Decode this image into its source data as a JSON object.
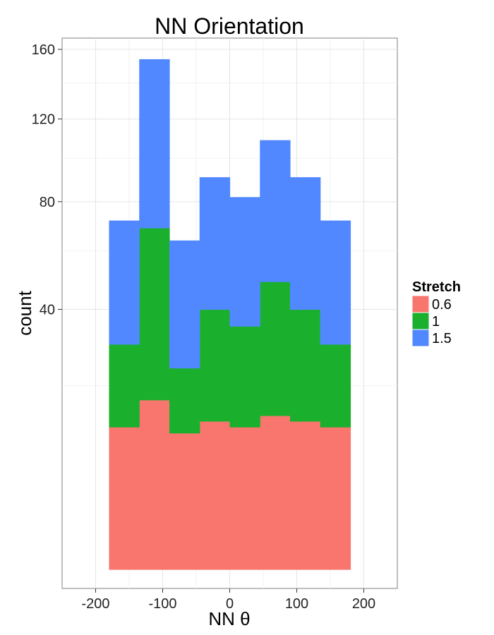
{
  "chart_data": {
    "type": "bar",
    "title": "NN Orientation",
    "xlabel": "NN θ",
    "ylabel": "count",
    "xlim": [
      -250,
      250
    ],
    "xticks": [
      -200,
      -100,
      0,
      100,
      200
    ],
    "xtick_labels": [
      "-200",
      "-100",
      "0",
      "100",
      "200"
    ],
    "y_scale": "sqrt",
    "ylim": [
      0,
      167
    ],
    "yticks": [
      40,
      80,
      120,
      160
    ],
    "ytick_labels": [
      "40",
      "80",
      "120",
      "160"
    ],
    "grid": true,
    "stacked": true,
    "bin_edges": [
      -180,
      -135,
      -90,
      -45,
      0,
      45,
      90,
      135,
      180
    ],
    "legend": {
      "title": "Stretch",
      "position": "right"
    },
    "series": [
      {
        "name": "0.6",
        "color": "#F8766D",
        "values": [
          12,
          17,
          11,
          13,
          12,
          14,
          13,
          12
        ]
      },
      {
        "name": "1",
        "color": "#1AB02E",
        "values": [
          18,
          52,
          13,
          27,
          23,
          35,
          27,
          18
        ]
      },
      {
        "name": "1.5",
        "color": "#5188FF",
        "values": [
          42,
          85,
          40,
          51,
          47,
          60,
          51,
          42
        ]
      }
    ]
  }
}
